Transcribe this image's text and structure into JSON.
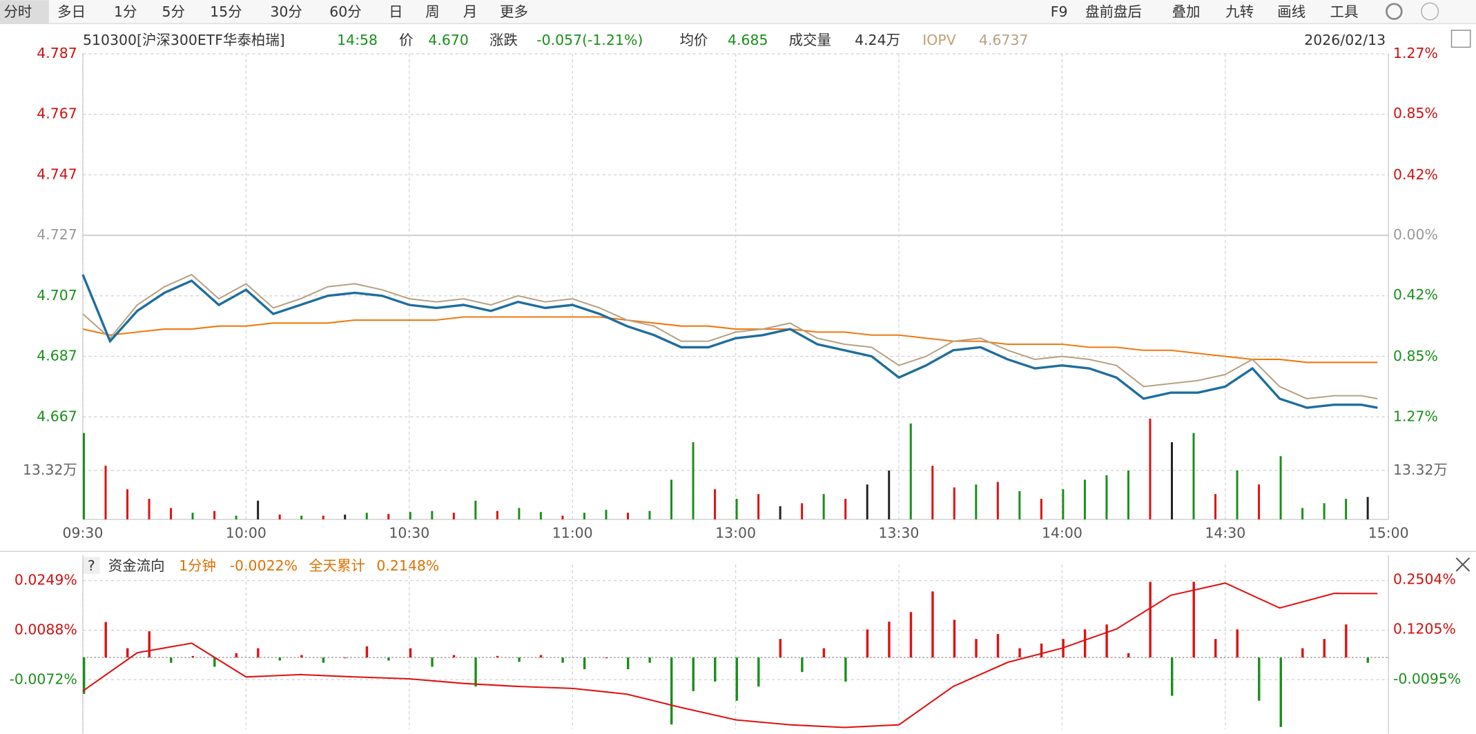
{
  "toolbar": {
    "left": [
      "分时",
      "多日",
      "1分",
      "5分",
      "15分",
      "30分",
      "60分",
      "日",
      "周",
      "月",
      "更多"
    ],
    "right": [
      "F9",
      "盘前盘后",
      "叠加",
      "九转",
      "画线",
      "工具"
    ]
  },
  "header": {
    "code": "510300[沪深300ETF华泰柏瑞]",
    "time": "14:58",
    "price_label": "价",
    "price": "4.670",
    "change_label": "涨跌",
    "change": "-0.057(-1.21%)",
    "avg_label": "均价",
    "avg": "4.685",
    "volume_label": "成交量",
    "volume": "4.24万",
    "iopv_label": "IOPV",
    "iopv": "4.6737",
    "date": "2026/02/13"
  },
  "flow_header": {
    "help": "?",
    "title": "资金流向",
    "period": "1分钟",
    "minute_value": "-0.0022%",
    "total_label": "全天累计",
    "total_value": "0.2148%"
  },
  "chart_data": [
    {
      "type": "line",
      "x": [
        0,
        5,
        10,
        15,
        20,
        25,
        30,
        35,
        40,
        45,
        50,
        55,
        60,
        65,
        70,
        75,
        80,
        85,
        90,
        95,
        100,
        105,
        110,
        115,
        120,
        125,
        130,
        135,
        140,
        145,
        150,
        155,
        160,
        165,
        170,
        175,
        180,
        185,
        190,
        195,
        200,
        205,
        210,
        215,
        220,
        225,
        230,
        235,
        238
      ],
      "xlim": [
        0,
        240
      ],
      "xticks": [
        {
          "value": 0,
          "label": "09:30"
        },
        {
          "value": 30,
          "label": "10:00"
        },
        {
          "value": 60,
          "label": "10:30"
        },
        {
          "value": 90,
          "label": "11:00"
        },
        {
          "value": 120,
          "label": "13:00"
        },
        {
          "value": 150,
          "label": "13:30"
        },
        {
          "value": 180,
          "label": "14:00"
        },
        {
          "value": 210,
          "label": "14:30"
        },
        {
          "value": 240,
          "label": "15:00"
        }
      ],
      "ylim": [
        4.667,
        4.787
      ],
      "yticks": [
        4.787,
        4.767,
        4.747,
        4.727,
        4.707,
        4.687,
        4.667
      ],
      "y2lim": [
        -1.27,
        1.27
      ],
      "y2ticks": [
        {
          "value": 1.27,
          "label": "1.27%"
        },
        {
          "value": 0.85,
          "label": "0.85%"
        },
        {
          "value": 0.42,
          "label": "0.42%"
        },
        {
          "value": 0,
          "label": "0.00%"
        },
        {
          "value": -0.42,
          "label": "0.42%"
        },
        {
          "value": -0.85,
          "label": "0.85%"
        },
        {
          "value": -1.27,
          "label": "1.27%"
        }
      ],
      "grid": true,
      "series": [
        {
          "color": "#1e6e9e",
          "values": [
            4.714,
            4.692,
            4.702,
            4.708,
            4.712,
            4.704,
            4.709,
            4.701,
            4.704,
            4.707,
            4.708,
            4.707,
            4.704,
            4.703,
            4.704,
            4.702,
            4.705,
            4.703,
            4.704,
            4.701,
            4.697,
            4.694,
            4.69,
            4.69,
            4.693,
            4.694,
            4.696,
            4.691,
            4.689,
            4.687,
            4.68,
            4.684,
            4.689,
            4.69,
            4.686,
            4.683,
            4.684,
            4.683,
            4.68,
            4.673,
            4.675,
            4.675,
            4.677,
            4.683,
            4.673,
            4.67,
            4.671,
            4.671,
            4.67
          ]
        },
        {
          "color": "#b5a283",
          "values": [
            4.701,
            4.693,
            4.704,
            4.71,
            4.714,
            4.706,
            4.711,
            4.703,
            4.706,
            4.71,
            4.711,
            4.709,
            4.706,
            4.705,
            4.706,
            4.704,
            4.707,
            4.705,
            4.706,
            4.703,
            4.699,
            4.697,
            4.692,
            4.692,
            4.695,
            4.696,
            4.698,
            4.693,
            4.691,
            4.69,
            4.684,
            4.687,
            4.692,
            4.693,
            4.689,
            4.686,
            4.687,
            4.686,
            4.684,
            4.677,
            4.678,
            4.679,
            4.681,
            4.686,
            4.677,
            4.673,
            4.674,
            4.674,
            4.673
          ]
        },
        {
          "color": "#f07810",
          "values": [
            4.696,
            4.694,
            4.695,
            4.696,
            4.696,
            4.697,
            4.697,
            4.698,
            4.698,
            4.698,
            4.699,
            4.699,
            4.699,
            4.699,
            4.7,
            4.7,
            4.7,
            4.7,
            4.7,
            4.7,
            4.699,
            4.698,
            4.697,
            4.697,
            4.696,
            4.696,
            4.696,
            4.695,
            4.695,
            4.694,
            4.694,
            4.693,
            4.692,
            4.692,
            4.691,
            4.691,
            4.691,
            4.69,
            4.69,
            4.689,
            4.689,
            4.688,
            4.687,
            4.686,
            4.686,
            4.685,
            4.685,
            4.685,
            4.685
          ]
        }
      ],
      "volume": {
        "x": [
          0,
          4,
          8,
          12,
          16,
          20,
          24,
          28,
          32,
          36,
          40,
          44,
          48,
          52,
          56,
          60,
          64,
          68,
          72,
          76,
          80,
          84,
          88,
          92,
          96,
          100,
          104,
          108,
          112,
          116,
          120,
          124,
          128,
          132,
          136,
          140,
          144,
          148,
          152,
          156,
          160,
          164,
          168,
          172,
          176,
          180,
          184,
          188,
          192,
          196,
          200,
          204,
          208,
          212,
          216,
          220,
          224,
          228,
          232,
          236
        ],
        "values": [
          23.5,
          14.6,
          8.2,
          5.6,
          3.1,
          1.8,
          2.3,
          1.0,
          5.1,
          1.3,
          1.0,
          1.0,
          1.3,
          1.8,
          1.5,
          2.0,
          2.3,
          1.8,
          5.1,
          2.3,
          3.1,
          2.0,
          1.0,
          1.8,
          2.6,
          1.8,
          2.3,
          10.8,
          21.0,
          8.2,
          5.6,
          6.9,
          3.6,
          4.4,
          6.9,
          5.6,
          9.5,
          13.3,
          26.1,
          14.6,
          8.7,
          9.5,
          10.2,
          7.7,
          5.6,
          8.2,
          10.8,
          12.0,
          13.3,
          27.4,
          21.0,
          23.5,
          6.9,
          13.3,
          9.5,
          17.2,
          3.1,
          4.4,
          5.6,
          6.1
        ],
        "colors": [
          "#1a8f1a",
          "#e01010",
          "#e01010",
          "#e01010",
          "#e01010",
          "#1a8f1a",
          "#e01010",
          "#1a8f1a",
          "#222222",
          "#e01010",
          "#1a8f1a",
          "#e01010",
          "#222222",
          "#1a8f1a",
          "#e01010",
          "#1a8f1a",
          "#1a8f1a",
          "#e01010",
          "#1a8f1a",
          "#e01010",
          "#1a8f1a",
          "#1a8f1a",
          "#e01010",
          "#1a8f1a",
          "#1a8f1a",
          "#e01010",
          "#1a8f1a",
          "#1a8f1a",
          "#1a8f1a",
          "#e01010",
          "#1a8f1a",
          "#e01010",
          "#222222",
          "#e01010",
          "#1a8f1a",
          "#e01010",
          "#222222",
          "#222222",
          "#1a8f1a",
          "#e01010",
          "#e01010",
          "#1a8f1a",
          "#e01010",
          "#1a8f1a",
          "#e01010",
          "#1a8f1a",
          "#1a8f1a",
          "#1a8f1a",
          "#1a8f1a",
          "#e01010",
          "#222222",
          "#1a8f1a",
          "#e01010",
          "#1a8f1a",
          "#e01010",
          "#1a8f1a",
          "#1a8f1a",
          "#1a8f1a",
          "#1a8f1a",
          "#222222"
        ],
        "ylim": [
          0,
          27.9
        ],
        "yticks": [
          {
            "value": 13.32,
            "label": "13.32万"
          }
        ]
      }
    },
    {
      "type": "bar",
      "x": [
        0,
        4,
        8,
        12,
        16,
        20,
        24,
        28,
        32,
        36,
        40,
        44,
        48,
        52,
        56,
        60,
        64,
        68,
        72,
        76,
        80,
        84,
        88,
        92,
        96,
        100,
        104,
        108,
        112,
        116,
        120,
        124,
        128,
        132,
        136,
        140,
        144,
        148,
        152,
        156,
        160,
        164,
        168,
        172,
        176,
        180,
        184,
        188,
        192,
        196,
        200,
        204,
        208,
        212,
        216,
        220,
        224,
        228,
        232,
        236
      ],
      "xlim": [
        0,
        240
      ],
      "values": [
        -0.0118,
        0.0115,
        0.003,
        0.0085,
        -0.0017,
        0.0005,
        -0.003,
        0.0014,
        0.003,
        -0.001,
        0.0008,
        -0.0017,
        0,
        0.0036,
        -0.001,
        0.003,
        -0.003,
        0.0008,
        -0.0094,
        0.0005,
        -0.0014,
        0.0008,
        -0.0017,
        -0.0038,
        0,
        -0.0038,
        -0.0017,
        -0.0217,
        -0.0109,
        -0.0078,
        -0.014,
        -0.0094,
        0.006,
        -0.0047,
        0.003,
        -0.0078,
        0.0091,
        0.0116,
        0.0147,
        0.0214,
        0.0122,
        0.006,
        0.0076,
        0.003,
        0.0045,
        0.006,
        0.0091,
        0.0107,
        0.0014,
        0.0245,
        -0.0124,
        0.0245,
        0.006,
        0.0091,
        -0.014,
        -0.0225,
        0.003,
        0.006,
        0.0107,
        -0.0017
      ],
      "up_color": "#e01010",
      "down_color": "#1a8f1a",
      "ylim": [
        -0.0232,
        0.0301
      ],
      "yticks": [
        {
          "value": 0.0249,
          "label": "0.0249%"
        },
        {
          "value": 0.0088,
          "label": "0.0088%"
        },
        {
          "value": -0.0072,
          "label": "-0.0072%"
        }
      ],
      "y2lim": [
        -0.1394,
        0.2904
      ],
      "y2ticks": [
        {
          "value": 0.2504,
          "label": "0.2504%"
        },
        {
          "value": 0.1205,
          "label": "0.1205%"
        },
        {
          "value": -0.0095,
          "label": "-0.0095%"
        }
      ],
      "line": {
        "axis": "y2",
        "color": "#e01010",
        "x": [
          0,
          10,
          20,
          30,
          40,
          50,
          60,
          70,
          80,
          90,
          100,
          110,
          120,
          130,
          140,
          150,
          160,
          170,
          180,
          190,
          200,
          210,
          220,
          230,
          238
        ],
        "values": [
          -0.04,
          0.06,
          0.085,
          -0.003,
          0.003,
          -0.003,
          -0.008,
          -0.02,
          -0.028,
          -0.033,
          -0.048,
          -0.083,
          -0.115,
          -0.128,
          -0.135,
          -0.128,
          -0.028,
          0.035,
          0.072,
          0.122,
          0.21,
          0.242,
          0.177,
          0.215,
          0.2148
        ]
      }
    }
  ]
}
